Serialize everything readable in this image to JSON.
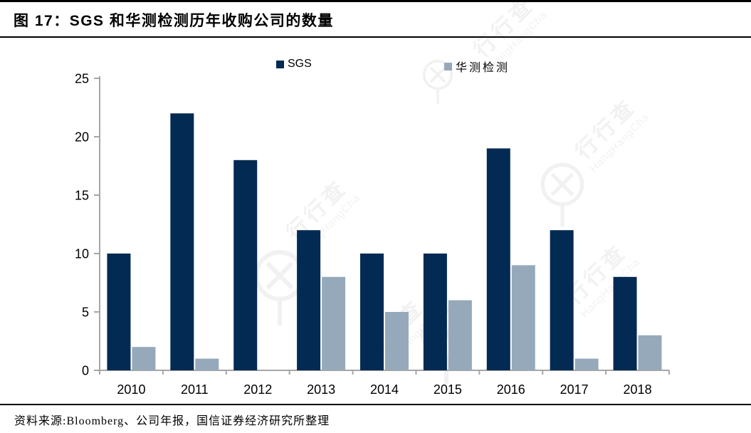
{
  "figure": {
    "title": "图 17：SGS 和华测检测历年收购公司的数量",
    "source": "资料来源:Bloomberg、公司年报，国信证券经济研究所整理"
  },
  "watermark": {
    "text_cn": "行行查",
    "text_en": "HangHangCha"
  },
  "chart_data": {
    "type": "bar",
    "title": "图 17：SGS 和华测检测历年收购公司的数量",
    "categories": [
      "2010",
      "2011",
      "2012",
      "2013",
      "2014",
      "2015",
      "2016",
      "2017",
      "2018"
    ],
    "series": [
      {
        "name": "SGS",
        "color": "#032A52",
        "values": [
          10,
          22,
          18,
          12,
          10,
          10,
          19,
          12,
          8
        ]
      },
      {
        "name": "华测检测",
        "color": "#96A9BA",
        "values": [
          2,
          1,
          0,
          8,
          5,
          6,
          9,
          1,
          3
        ]
      }
    ],
    "xlabel": "",
    "ylabel": "",
    "ylim": [
      0,
      25
    ],
    "yticks": [
      0,
      5,
      10,
      15,
      20,
      25
    ],
    "grid": false,
    "legend_position": "top",
    "axis_color": "#A6A6A6",
    "tick_label_color": "#000000"
  }
}
